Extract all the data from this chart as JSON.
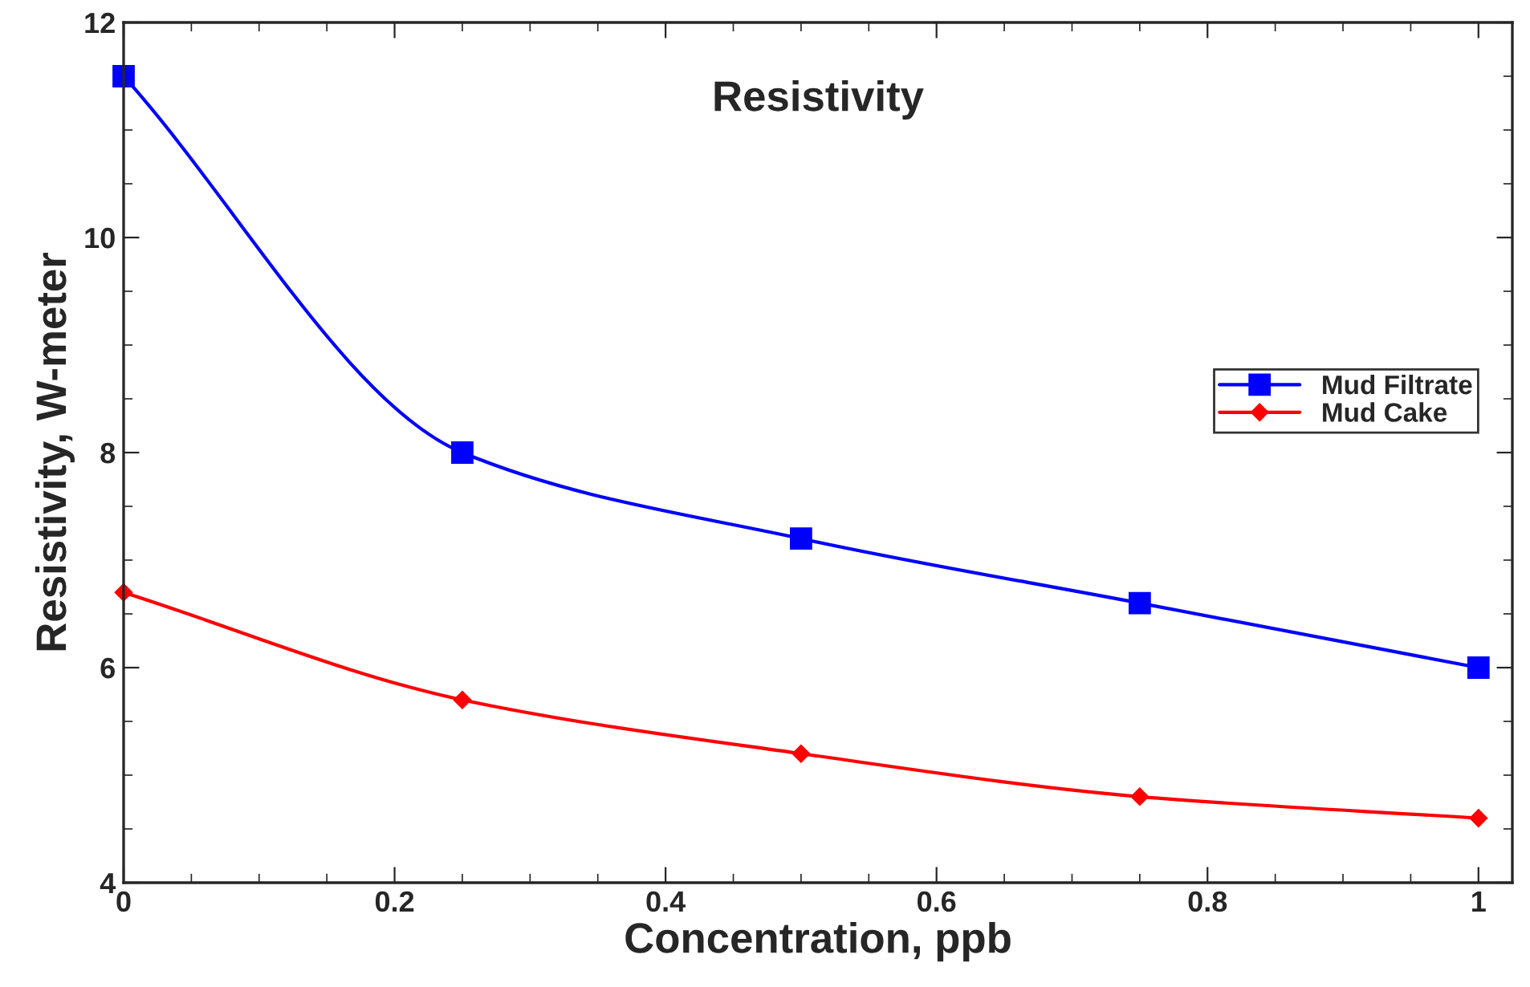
{
  "chart_data": {
    "type": "line",
    "title": "Resistivity",
    "xlabel": "Concentration, ppb",
    "ylabel": "Resistivity, W-meter",
    "x": [
      0,
      0.25,
      0.5,
      0.75,
      1
    ],
    "series": [
      {
        "name": "Mud Filtrate",
        "color": "#0000ff",
        "marker": "square",
        "values": [
          11.5,
          8.0,
          7.2,
          6.6,
          6.0
        ]
      },
      {
        "name": "Mud Cake",
        "color": "#ff0000",
        "marker": "diamond",
        "values": [
          6.7,
          5.7,
          5.2,
          4.8,
          4.6
        ]
      }
    ],
    "xlim": [
      0,
      1.025
    ],
    "xticks": [
      0,
      0.2,
      0.4,
      0.6,
      0.8,
      1
    ],
    "ylim": [
      4,
      12
    ],
    "yticks": [
      4,
      6,
      8,
      10,
      12
    ],
    "grid": false,
    "legend": "center right",
    "line_style": "solid"
  }
}
